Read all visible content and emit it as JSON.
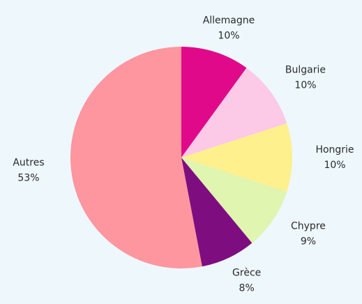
{
  "chart_data": {
    "type": "pie",
    "categories": [
      "Allemagne",
      "Bulgarie",
      "Hongrie",
      "Chypre",
      "Grèce",
      "Autres"
    ],
    "values": [
      10,
      10,
      10,
      9,
      8,
      53
    ],
    "value_labels": [
      "10%",
      "10%",
      "10%",
      "9%",
      "8%",
      "53%"
    ],
    "colors": [
      "#e0098a",
      "#fcc9e6",
      "#fef08d",
      "#dff5b0",
      "#7e0e80",
      "#fd969f"
    ]
  }
}
